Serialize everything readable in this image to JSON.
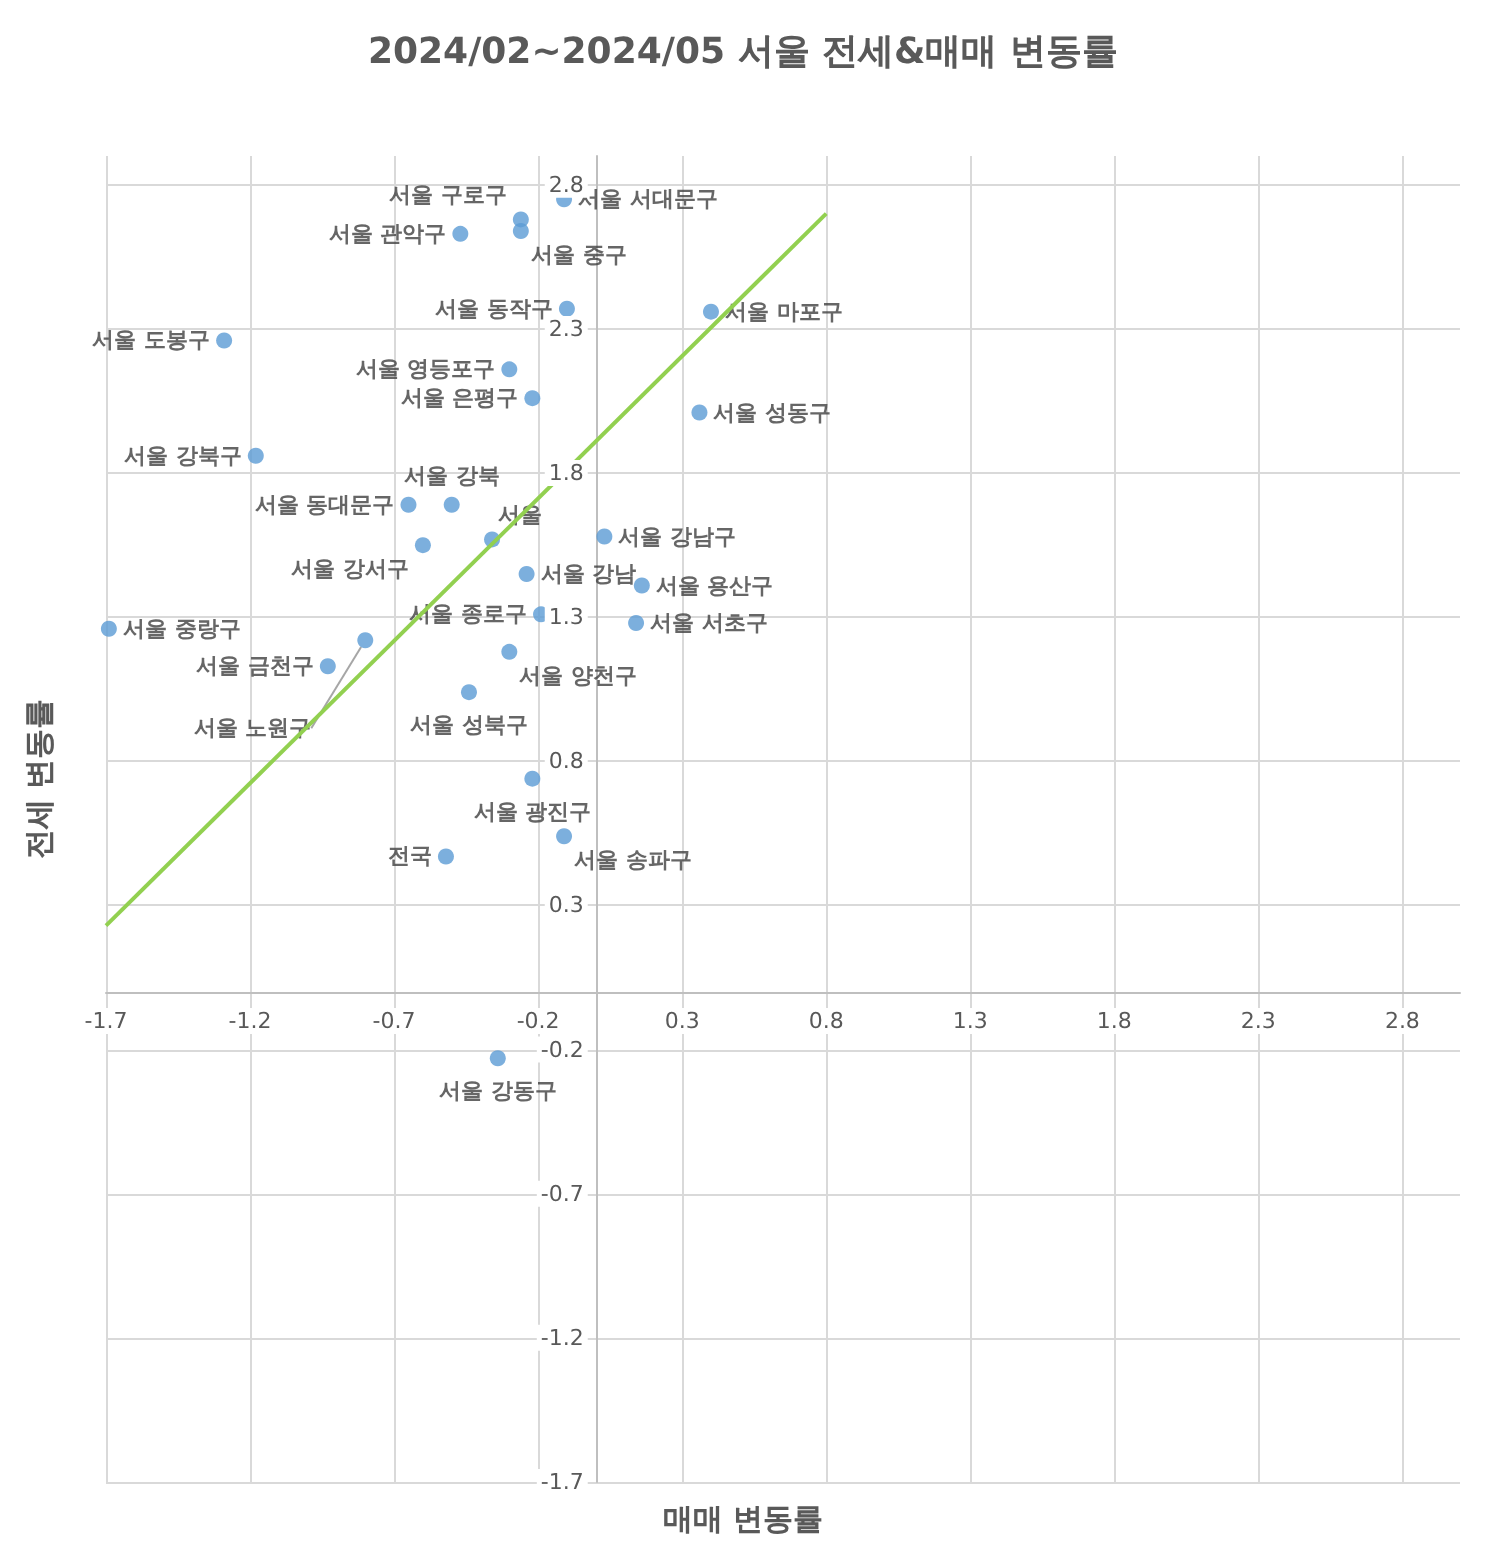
{
  "chart_data": {
    "type": "scatter",
    "title": "2024/02~2024/05 서울 전세&매매 변동률",
    "xlabel": "매매 변동률",
    "ylabel": "전세 변동률",
    "xlim": [
      -1.7,
      3.0
    ],
    "ylim": [
      -1.7,
      2.9
    ],
    "xticks": [
      -1.7,
      -1.2,
      -0.7,
      -0.2,
      0.3,
      0.8,
      1.3,
      1.8,
      2.3,
      2.8
    ],
    "yticks": [
      -1.7,
      -1.2,
      -0.7,
      -0.2,
      0.3,
      0.8,
      1.3,
      1.8,
      2.3,
      2.8
    ],
    "grid": true,
    "legend": false,
    "marker": "circle",
    "series": [
      {
        "name": "서울 서대문구",
        "color": "#5b9bd5",
        "x": [
          -0.11
        ],
        "values": [
          2.75
        ]
      },
      {
        "name": "서울 구로구",
        "color": "#5b9bd5",
        "x": [
          -0.26
        ],
        "values": [
          2.68
        ]
      },
      {
        "name": "서울 중구",
        "color": "#5b9bd5",
        "x": [
          -0.26
        ],
        "values": [
          2.64
        ]
      },
      {
        "name": "서울 관악구",
        "color": "#5b9bd5",
        "x": [
          -0.47
        ],
        "values": [
          2.63
        ]
      },
      {
        "name": "서울 동작구",
        "color": "#5b9bd5",
        "x": [
          -0.1
        ],
        "values": [
          2.37
        ]
      },
      {
        "name": "서울 마포구",
        "color": "#5b9bd5",
        "x": [
          0.4
        ],
        "values": [
          2.36
        ]
      },
      {
        "name": "서울 도봉구",
        "color": "#5b9bd5",
        "x": [
          -1.29
        ],
        "values": [
          2.26
        ]
      },
      {
        "name": "서울 영등포구",
        "color": "#5b9bd5",
        "x": [
          -0.3
        ],
        "values": [
          2.16
        ]
      },
      {
        "name": "서울 은평구",
        "color": "#5b9bd5",
        "x": [
          -0.22
        ],
        "values": [
          2.06
        ]
      },
      {
        "name": "서울 성동구",
        "color": "#5b9bd5",
        "x": [
          0.36
        ],
        "values": [
          2.01
        ]
      },
      {
        "name": "서울 강북구",
        "color": "#5b9bd5",
        "x": [
          -1.18
        ],
        "values": [
          1.86
        ]
      },
      {
        "name": "서울 동대문구",
        "color": "#5b9bd5",
        "x": [
          -0.65
        ],
        "values": [
          1.69
        ]
      },
      {
        "name": "서울 강북",
        "color": "#5b9bd5",
        "x": [
          -0.5
        ],
        "values": [
          1.69
        ]
      },
      {
        "name": "서울",
        "color": "#5b9bd5",
        "x": [
          -0.36
        ],
        "values": [
          1.57
        ]
      },
      {
        "name": "서울 강남구",
        "color": "#5b9bd5",
        "x": [
          0.03
        ],
        "values": [
          1.58
        ]
      },
      {
        "name": "서울 강서구",
        "color": "#5b9bd5",
        "x": [
          -0.6
        ],
        "values": [
          1.55
        ]
      },
      {
        "name": "서울 강남",
        "color": "#5b9bd5",
        "x": [
          -0.24
        ],
        "values": [
          1.45
        ]
      },
      {
        "name": "서울 용산구",
        "color": "#5b9bd5",
        "x": [
          0.16
        ],
        "values": [
          1.41
        ]
      },
      {
        "name": "서울 종로구",
        "color": "#5b9bd5",
        "x": [
          -0.19
        ],
        "values": [
          1.31
        ]
      },
      {
        "name": "서울 서초구",
        "color": "#5b9bd5",
        "x": [
          0.14
        ],
        "values": [
          1.28
        ]
      },
      {
        "name": "서울 중랑구",
        "color": "#5b9bd5",
        "x": [
          -1.69
        ],
        "values": [
          1.26
        ]
      },
      {
        "name": "서울 노원구",
        "color": "#5b9bd5",
        "x": [
          -0.8
        ],
        "values": [
          1.22
        ]
      },
      {
        "name": "서울 양천구",
        "color": "#5b9bd5",
        "x": [
          -0.3
        ],
        "values": [
          1.18
        ]
      },
      {
        "name": "서울 금천구",
        "color": "#5b9bd5",
        "x": [
          -0.93
        ],
        "values": [
          1.13
        ]
      },
      {
        "name": "서울 성북구",
        "color": "#5b9bd5",
        "x": [
          -0.44
        ],
        "values": [
          1.04
        ]
      },
      {
        "name": "서울 광진구",
        "color": "#5b9bd5",
        "x": [
          -0.22
        ],
        "values": [
          0.74
        ]
      },
      {
        "name": "서울 송파구",
        "color": "#5b9bd5",
        "x": [
          -0.11
        ],
        "values": [
          0.54
        ]
      },
      {
        "name": "전국",
        "color": "#5b9bd5",
        "x": [
          -0.52
        ],
        "values": [
          0.47
        ]
      },
      {
        "name": "서울 강동구",
        "color": "#5b9bd5",
        "x": [
          -0.34
        ],
        "values": [
          -0.23
        ]
      },
      {
        "type": "line",
        "marker": "none",
        "color": "#92d050",
        "x": [
          -1.7,
          0.8
        ],
        "values": [
          0.23,
          2.7
        ]
      }
    ]
  }
}
